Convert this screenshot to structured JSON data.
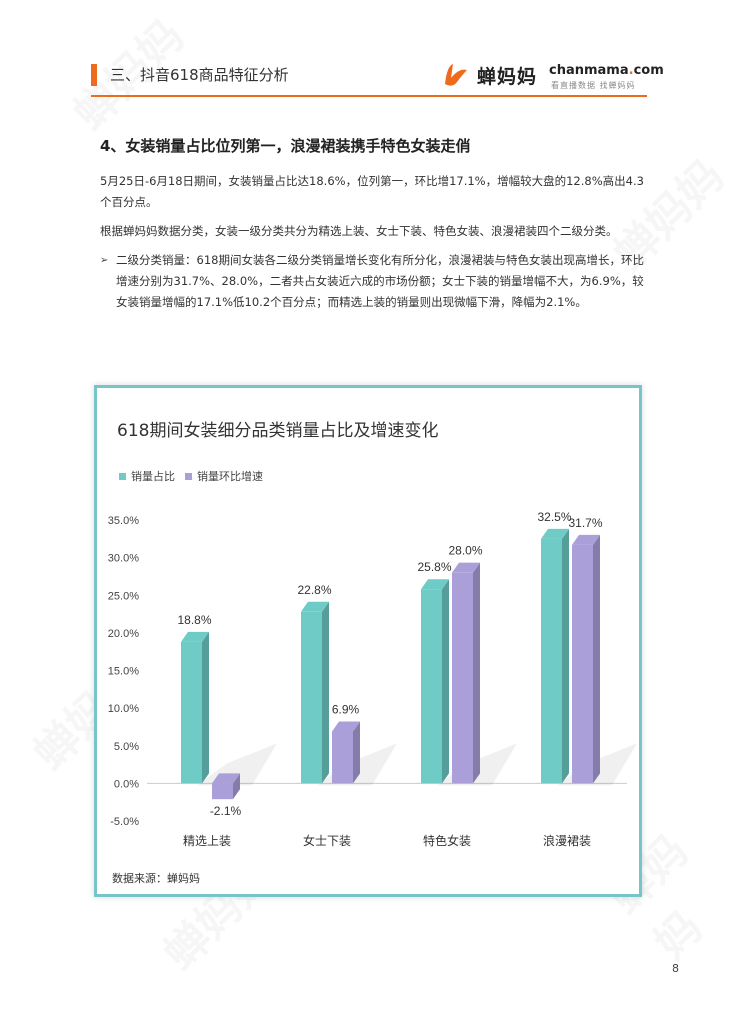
{
  "header": {
    "section_title": "三、抖音618商品特征分析",
    "logo_cn": "蝉妈妈",
    "logo_en_left": "chanmama",
    "logo_en_dot": ".",
    "logo_en_right": "com",
    "logo_sub": "看直播数据 找蝉妈妈",
    "accent_color": "#ee6b1e"
  },
  "content": {
    "heading": "4、女装销量占比位列第一，浪漫裙装携手特色女装走俏",
    "para1": "5月25日-6月18日期间，女装销量占比达18.6%，位列第一，环比增17.1%，增幅较大盘的12.8%高出4.3个百分点。",
    "para2": "根据蝉妈妈数据分类，女装一级分类共分为精选上装、女士下装、特色女装、浪漫裙装四个二级分类。",
    "bullet": "二级分类销量：618期间女装各二级分类销量增长变化有所分化，浪漫裙装与特色女装出现高增长，环比增速分别为31.7%、28.0%，二者共占女装近六成的市场份额；女士下装的销量增幅不大，为6.9%，较女装销量增幅的17.1%低10.2个百分点；而精选上装的销量则出现微幅下滑，降幅为2.1%。"
  },
  "chart_data": {
    "type": "bar",
    "title": "618期间女装细分品类销量占比及增速变化",
    "categories": [
      "精选上装",
      "女士下装",
      "特色女装",
      "浪漫裙装"
    ],
    "series": [
      {
        "name": "销量占比",
        "values": [
          18.8,
          22.8,
          25.8,
          32.5
        ],
        "labels": [
          "18.8%",
          "22.8%",
          "25.8%",
          "32.5%"
        ],
        "color": "#6ecbc6"
      },
      {
        "name": "销量环比增速",
        "values": [
          -2.1,
          6.9,
          28.0,
          31.7
        ],
        "labels": [
          "-2.1%",
          "6.9%",
          "28.0%",
          "31.7%"
        ],
        "color": "#ab9fd9"
      }
    ],
    "yticks": [
      "35.0%",
      "30.0%",
      "25.0%",
      "20.0%",
      "15.0%",
      "10.0%",
      "5.0%",
      "0.0%",
      "-5.0%"
    ],
    "ylim": [
      -5,
      35
    ],
    "grid": false,
    "legend": "top-left",
    "source": "数据来源：蝉妈妈"
  },
  "footer": {
    "page_number": "8"
  }
}
